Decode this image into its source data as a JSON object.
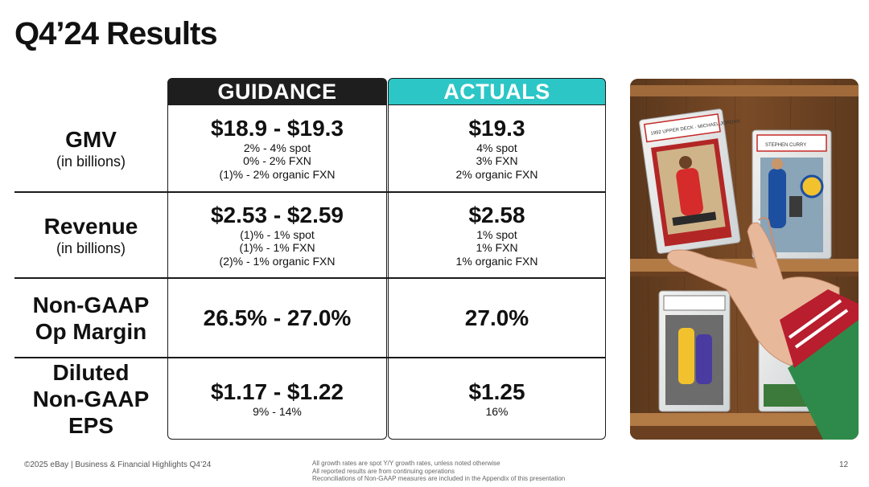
{
  "page": {
    "title": "Q4’24 Results"
  },
  "table": {
    "headers": {
      "guidance": "GUIDANCE",
      "actuals": "ACTUALS"
    },
    "rows": [
      {
        "label": "GMV",
        "sub": "(in billions)",
        "guidance": {
          "main": "$18.9 - $19.3",
          "details": [
            "2% - 4% spot",
            "0% - 2% FXN",
            "(1)% - 2% organic FXN"
          ]
        },
        "actuals": {
          "main": "$19.3",
          "details": [
            "4% spot",
            "3% FXN",
            "2% organic FXN"
          ]
        }
      },
      {
        "label": "Revenue",
        "sub": "(in billions)",
        "guidance": {
          "main": "$2.53 - $2.59",
          "details": [
            "(1)% - 1% spot",
            "(1)% - 1% FXN",
            "(2)% - 1% organic FXN"
          ]
        },
        "actuals": {
          "main": "$2.58",
          "details": [
            "1% spot",
            "1% FXN",
            "1% organic FXN"
          ]
        }
      },
      {
        "label_lines": [
          "Non-GAAP",
          "Op Margin"
        ],
        "guidance": {
          "main": "26.5% - 27.0%"
        },
        "actuals": {
          "main": "27.0%"
        }
      },
      {
        "label_lines": [
          "Diluted",
          "Non-GAAP",
          "EPS"
        ],
        "guidance": {
          "main": "$1.17 - $1.22",
          "details": [
            "9% - 14%"
          ]
        },
        "actuals": {
          "main": "$1.25",
          "details": [
            "16%"
          ]
        }
      }
    ]
  },
  "photo": {
    "card1_text": "1992 UPPER DECK · MICHAEL JORDAN",
    "card2_text": "STEPHEN CURRY"
  },
  "footer": {
    "left": "©2025 eBay | Business & Financial Highlights Q4’24",
    "notes": [
      "All growth rates are spot Y/Y growth rates, unless noted otherwise",
      "All reported results are from continuing operations",
      "Reconciliations of Non-GAAP measures are included in the Appendix of this presentation"
    ],
    "page_number": "12"
  },
  "colors": {
    "guidance_header": "#1e1e1e",
    "actuals_header": "#2cc6c6"
  }
}
